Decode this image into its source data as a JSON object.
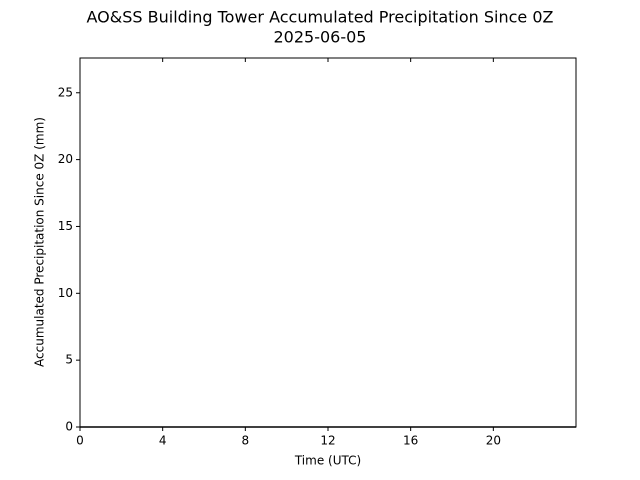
{
  "chart_data": {
    "type": "line",
    "title": "AO&SS Building Tower Accumulated Precipitation Since 0Z",
    "subtitle": "2025-06-05",
    "x_label": "Time (UTC)",
    "y_label": "Accumulated Precipitation Since 0Z (mm)",
    "x": [
      0,
      24
    ],
    "series": [
      {
        "color": "#000000",
        "values": [
          0,
          0
        ]
      }
    ],
    "xlim": [
      0,
      24
    ],
    "xticks": [
      0,
      4,
      8,
      12,
      16,
      20
    ],
    "ylim": [
      0,
      27.6
    ],
    "yticks": [
      0,
      5,
      10,
      15,
      20,
      25
    ],
    "grid": false
  }
}
